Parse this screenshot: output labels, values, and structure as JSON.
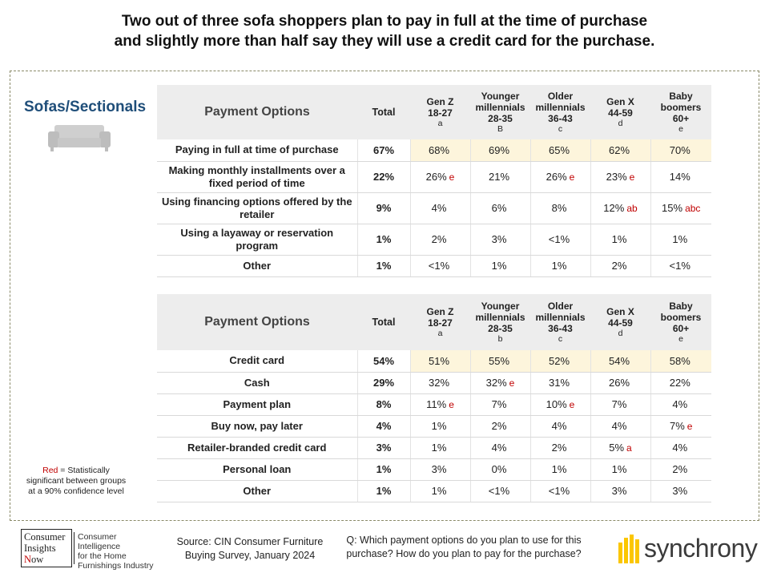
{
  "title": {
    "line1": "Two out of three sofa shoppers plan to pay in full at the time of purchase",
    "line2": "and slightly more than half say they will use a credit card for the purchase."
  },
  "category": "Sofas/Sectionals",
  "category_icon": "sofa-icon",
  "tables": [
    {
      "header": {
        "options": "Payment Options",
        "total": "Total",
        "groups": [
          {
            "line1": "Gen Z",
            "line2": "18-27",
            "letter": "a"
          },
          {
            "line1": "Younger",
            "line2": "millennials",
            "line3": "28-35",
            "letter": "B"
          },
          {
            "line1": "Older",
            "line2": "millennials",
            "line3": "36-43",
            "letter": "c"
          },
          {
            "line1": "Gen X",
            "line2": "44-59",
            "letter": "d"
          },
          {
            "line1": "Baby",
            "line2": "boomers",
            "line3": "60+",
            "letter": "e"
          }
        ]
      },
      "rows": [
        {
          "label": "Paying in full at time of purchase",
          "total": "67%",
          "values": [
            {
              "v": "68%",
              "sig": ""
            },
            {
              "v": "69%",
              "sig": ""
            },
            {
              "v": "65%",
              "sig": ""
            },
            {
              "v": "62%",
              "sig": ""
            },
            {
              "v": "70%",
              "sig": ""
            }
          ]
        },
        {
          "label": "Making monthly installments over a fixed period of time",
          "total": "22%",
          "values": [
            {
              "v": "26%",
              "sig": "e"
            },
            {
              "v": "21%",
              "sig": ""
            },
            {
              "v": "26%",
              "sig": "e"
            },
            {
              "v": "23%",
              "sig": "e"
            },
            {
              "v": "14%",
              "sig": ""
            }
          ]
        },
        {
          "label": "Using financing options offered by the retailer",
          "total": "9%",
          "values": [
            {
              "v": "4%",
              "sig": ""
            },
            {
              "v": "6%",
              "sig": ""
            },
            {
              "v": "8%",
              "sig": ""
            },
            {
              "v": "12%",
              "sig": "ab"
            },
            {
              "v": "15%",
              "sig": "abc"
            }
          ]
        },
        {
          "label": "Using a layaway or reservation program",
          "total": "1%",
          "values": [
            {
              "v": "2%",
              "sig": ""
            },
            {
              "v": "3%",
              "sig": ""
            },
            {
              "v": "<1%",
              "sig": ""
            },
            {
              "v": "1%",
              "sig": ""
            },
            {
              "v": "1%",
              "sig": ""
            }
          ]
        },
        {
          "label": "Other",
          "total": "1%",
          "values": [
            {
              "v": "<1%",
              "sig": ""
            },
            {
              "v": "1%",
              "sig": ""
            },
            {
              "v": "1%",
              "sig": ""
            },
            {
              "v": "2%",
              "sig": ""
            },
            {
              "v": "<1%",
              "sig": ""
            }
          ]
        }
      ]
    },
    {
      "header": {
        "options": "Payment Options",
        "total": "Total",
        "groups": [
          {
            "line1": "Gen Z",
            "line2": "18-27",
            "letter": "a"
          },
          {
            "line1": "Younger",
            "line2": "millennials",
            "line3": "28-35",
            "letter": "b"
          },
          {
            "line1": "Older",
            "line2": "millennials",
            "line3": "36-43",
            "letter": "c"
          },
          {
            "line1": "Gen X",
            "line2": "44-59",
            "letter": "d"
          },
          {
            "line1": "Baby",
            "line2": "boomers",
            "line3": "60+",
            "letter": "e"
          }
        ]
      },
      "rows": [
        {
          "label": "Credit card",
          "total": "54%",
          "values": [
            {
              "v": "51%",
              "sig": ""
            },
            {
              "v": "55%",
              "sig": ""
            },
            {
              "v": "52%",
              "sig": ""
            },
            {
              "v": "54%",
              "sig": ""
            },
            {
              "v": "58%",
              "sig": ""
            }
          ]
        },
        {
          "label": "Cash",
          "total": "29%",
          "values": [
            {
              "v": "32%",
              "sig": ""
            },
            {
              "v": "32%",
              "sig": "e"
            },
            {
              "v": "31%",
              "sig": ""
            },
            {
              "v": "26%",
              "sig": ""
            },
            {
              "v": "22%",
              "sig": ""
            }
          ]
        },
        {
          "label": "Payment plan",
          "total": "8%",
          "values": [
            {
              "v": "11%",
              "sig": "e"
            },
            {
              "v": "7%",
              "sig": ""
            },
            {
              "v": "10%",
              "sig": "e"
            },
            {
              "v": "7%",
              "sig": ""
            },
            {
              "v": "4%",
              "sig": ""
            }
          ]
        },
        {
          "label": "Buy now, pay later",
          "total": "4%",
          "values": [
            {
              "v": "1%",
              "sig": ""
            },
            {
              "v": "2%",
              "sig": ""
            },
            {
              "v": "4%",
              "sig": ""
            },
            {
              "v": "4%",
              "sig": ""
            },
            {
              "v": "7%",
              "sig": "e"
            }
          ]
        },
        {
          "label": "Retailer-branded credit card",
          "total": "3%",
          "values": [
            {
              "v": "1%",
              "sig": ""
            },
            {
              "v": "4%",
              "sig": ""
            },
            {
              "v": "2%",
              "sig": ""
            },
            {
              "v": "5%",
              "sig": "a"
            },
            {
              "v": "4%",
              "sig": ""
            }
          ]
        },
        {
          "label": "Personal loan",
          "total": "1%",
          "values": [
            {
              "v": "3%",
              "sig": ""
            },
            {
              "v": "0%",
              "sig": ""
            },
            {
              "v": "1%",
              "sig": ""
            },
            {
              "v": "1%",
              "sig": ""
            },
            {
              "v": "2%",
              "sig": ""
            }
          ]
        },
        {
          "label": "Other",
          "total": "1%",
          "values": [
            {
              "v": "1%",
              "sig": ""
            },
            {
              "v": "<1%",
              "sig": ""
            },
            {
              "v": "<1%",
              "sig": ""
            },
            {
              "v": "3%",
              "sig": ""
            },
            {
              "v": "3%",
              "sig": ""
            }
          ]
        }
      ]
    }
  ],
  "note": {
    "red_word": "Red",
    "rest": " = Statistically significant between groups at a 90% confidence level"
  },
  "footer": {
    "cin_logo": {
      "line1": "Consumer",
      "line2": "Insights",
      "line3_cap": "N",
      "line3_rest": "ow",
      "desc1": "Consumer Intelligence",
      "desc2": "for the Home",
      "desc3": "Furnishings Industry"
    },
    "source_line1": "Source:  CIN Consumer Furniture",
    "source_line2": "Buying Survey, January 2024",
    "question_line1": "Q: Which payment options do you plan to use for this",
    "question_line2": "purchase? How do you plan to pay for the purchase?",
    "brand": "synchrony",
    "brand_mark": "synchrony-logo-icon"
  },
  "colors": {
    "category": "#1f4e79",
    "significance": "#c00000",
    "highlight_row": "#fdf5dc",
    "header_bg": "#ededed",
    "brand_yellow": "#fbc600"
  }
}
